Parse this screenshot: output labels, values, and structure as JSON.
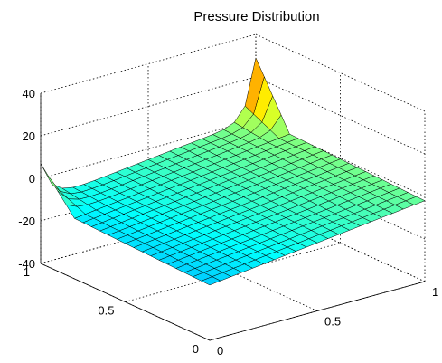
{
  "chart_data": {
    "type": "surface",
    "title": "Pressure Distribution",
    "xlabel": "",
    "ylabel": "",
    "zlabel": "",
    "x_range": [
      0,
      1
    ],
    "y_range": [
      0,
      1
    ],
    "z_range": [
      -40,
      40
    ],
    "x_ticks": [
      0,
      0.5,
      1
    ],
    "x_tick_labels": [
      "0",
      "0.5",
      "1"
    ],
    "y_ticks": [
      0,
      0.5,
      1
    ],
    "y_tick_labels": [
      "0",
      "0.5",
      "1"
    ],
    "z_ticks": [
      -40,
      -20,
      0,
      20,
      40
    ],
    "z_tick_labels": [
      "-40",
      "-20",
      "0",
      "20",
      "40"
    ],
    "grid": true,
    "colormap": "jet",
    "mesh_size": [
      21,
      21
    ],
    "surface_description": "Mostly smooth green surface sloping gently upward toward x = 1, with a singular pressure spike (peak near +40) and a deep dip (near -40) along the y = 1 edge near x = 0.",
    "approx_values_along_y1_edge": [
      {
        "x": 0.0,
        "z": -40
      },
      {
        "x": 0.05,
        "z": -28
      },
      {
        "x": 0.1,
        "z": -18
      },
      {
        "x": 0.15,
        "z": -12
      },
      {
        "x": 0.85,
        "z": 14
      },
      {
        "x": 0.9,
        "z": 22
      },
      {
        "x": 0.95,
        "z": 30
      },
      {
        "x": 1.0,
        "z": 40
      }
    ]
  }
}
